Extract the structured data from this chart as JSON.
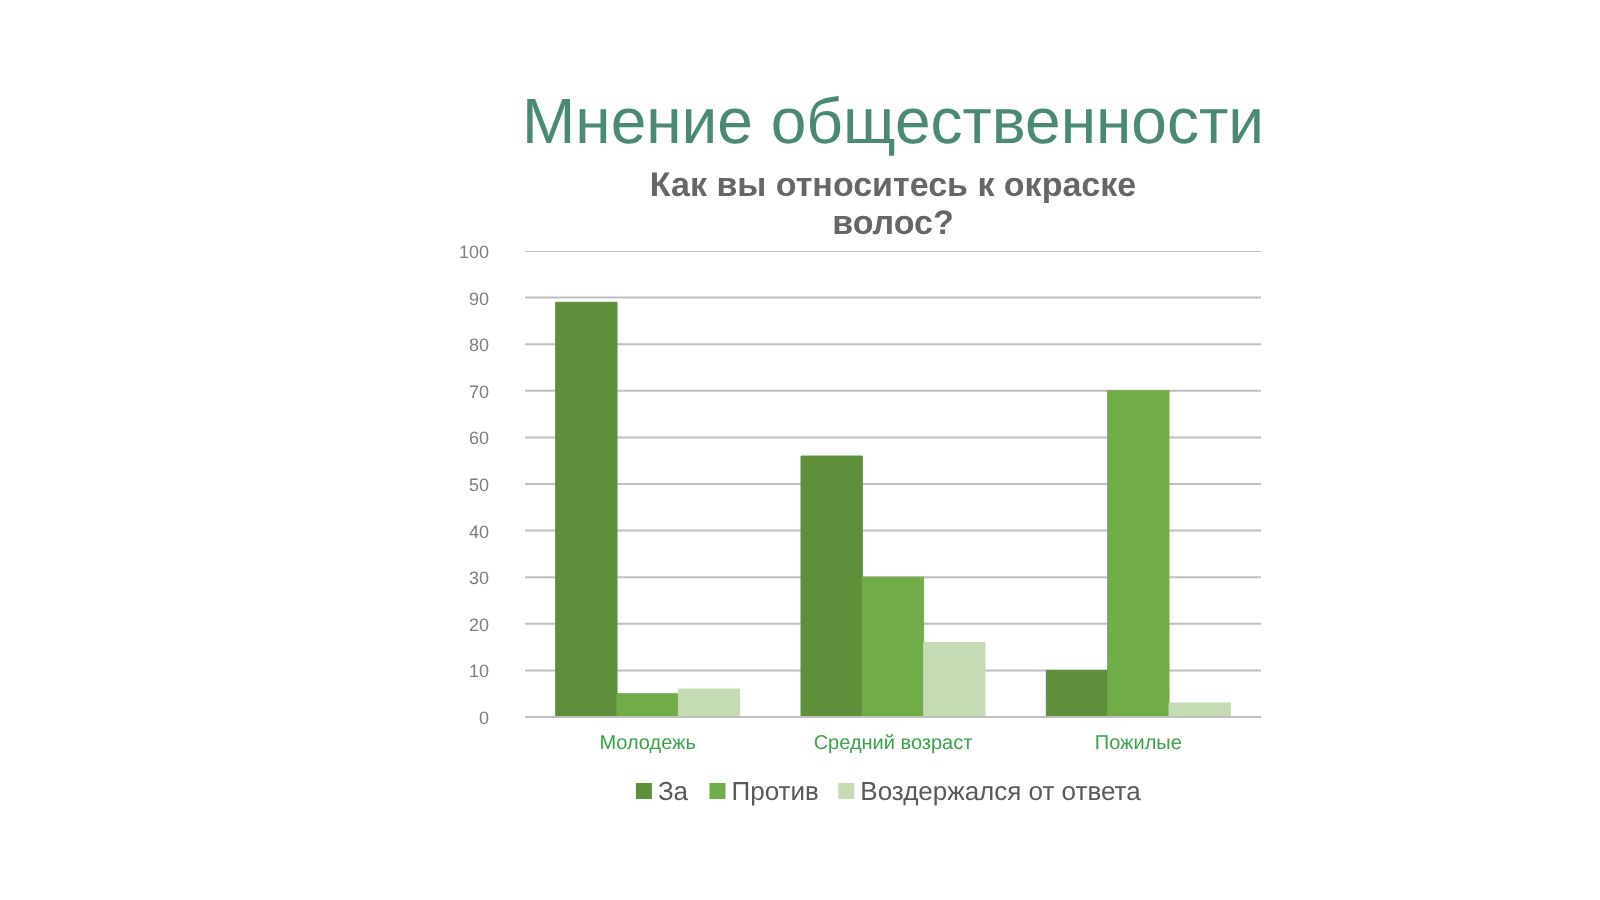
{
  "chart_data": {
    "type": "bar",
    "title": "Мнение общественности",
    "subtitle": "Как вы относитесь к окраске волос?",
    "categories": [
      "Молодежь",
      "Средний возраст",
      "Пожилые"
    ],
    "series": [
      {
        "name": "За",
        "color": "#5f8f3a",
        "values": [
          89,
          56,
          10
        ]
      },
      {
        "name": "Против",
        "color": "#70ad47",
        "values": [
          5,
          30,
          70
        ]
      },
      {
        "name": "Воздержался от ответа",
        "color": "#c5dbb3",
        "values": [
          6,
          16,
          3
        ]
      }
    ],
    "ylim": [
      0,
      100
    ],
    "yticks": [
      0,
      10,
      20,
      30,
      40,
      50,
      60,
      70,
      80,
      90,
      100
    ],
    "grid": "y",
    "legend": "bottom"
  }
}
